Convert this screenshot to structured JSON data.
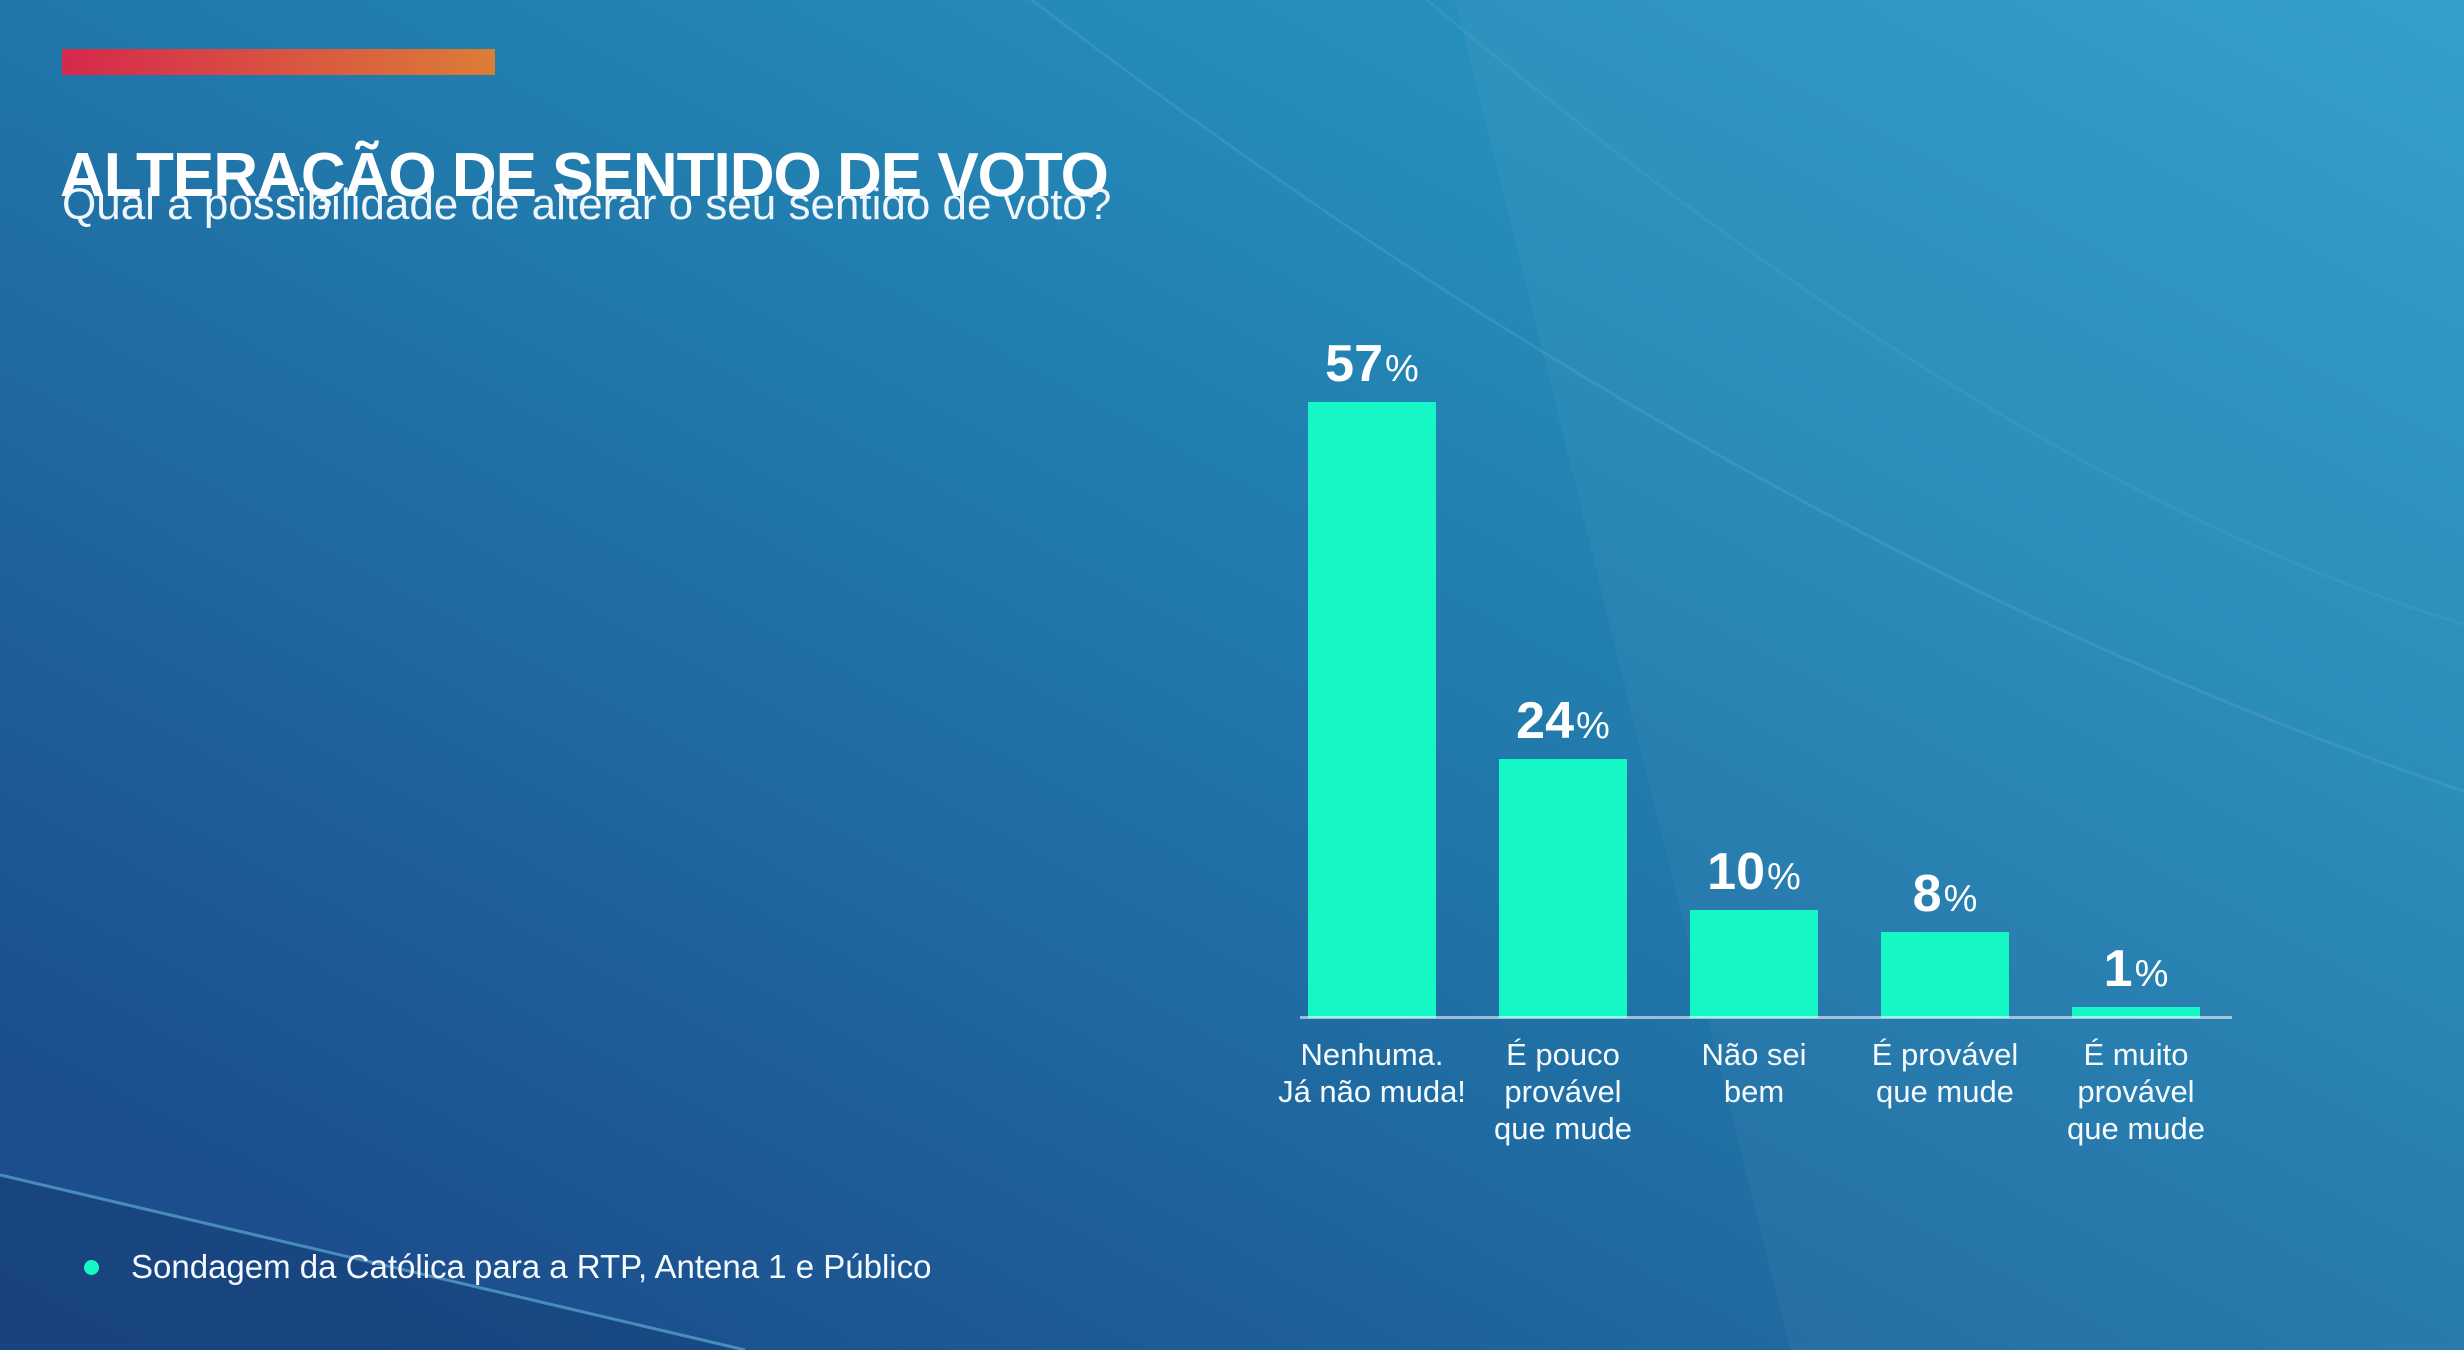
{
  "header": {
    "title": "ALTERAÇÃO DE SENTIDO DE VOTO",
    "subtitle": "Qual a possibilidade de alterar o seu sentido de voto?",
    "accent_gradient_start": "#D6284C",
    "accent_gradient_end": "#DC7D36"
  },
  "chart_data": {
    "type": "bar",
    "title": "ALTERAÇÃO DE SENTIDO DE VOTO",
    "subtitle": "Qual a possibilidade de alterar o seu sentido de voto?",
    "categories": [
      "Nenhuma. Já não muda!",
      "É pouco provável que mude",
      "Não sei bem",
      "É provável que mude",
      "É muito provável que mude"
    ],
    "category_lines": [
      [
        "Nenhuma.",
        "Já não muda!"
      ],
      [
        "É pouco",
        "provável",
        "que mude"
      ],
      [
        "Não sei",
        "bem"
      ],
      [
        "É provável",
        "que mude"
      ],
      [
        "É muito",
        "provável",
        "que mude"
      ]
    ],
    "values": [
      57,
      24,
      10,
      8,
      1
    ],
    "value_suffix": "%",
    "ylim": [
      0,
      60
    ],
    "grid": false,
    "legend": null,
    "bar_color": "#16F7C6",
    "baseline_color": "rgba(255,255,255,0.55)",
    "value_label_color": "#FFFFFF",
    "category_label_color": "#F4FAFD"
  },
  "footer": {
    "bullet_color": "#16F7C6",
    "source": "Sondagem da Católica para a RTP, Antena 1 e Público"
  },
  "background": {
    "gradient_top_right": "#2D9CCA",
    "gradient_bottom_left": "#1C4A8A"
  }
}
